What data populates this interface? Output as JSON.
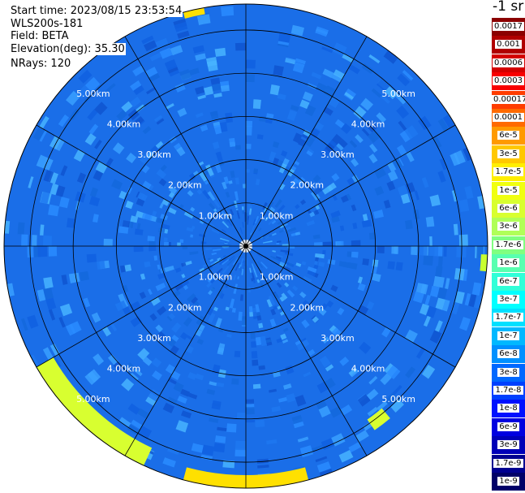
{
  "header": {
    "start_time": "Start time: 2023/08/15 23:53:54",
    "instrument": "WLS200s-181",
    "field": "Field: BETA",
    "elevation": "Elevation(deg): 35.30",
    "nrays": "NRays: 120"
  },
  "colorbar": {
    "unit": "-1 sr",
    "labels": [
      "0.0017",
      "0.001",
      "0.0006",
      "0.0003",
      "0.00017",
      "0.0001",
      "6e-5",
      "3e-5",
      "1.7e-5",
      "1e-5",
      "6e-6",
      "3e-6",
      "1.7e-6",
      "1e-6",
      "6e-7",
      "3e-7",
      "1.7e-7",
      "1e-7",
      "6e-8",
      "3e-8",
      "1.7e-8",
      "1e-8",
      "6e-9",
      "3e-9",
      "1.7e-9",
      "1e-9"
    ],
    "colors": [
      "#8b0000",
      "#b00000",
      "#d40000",
      "#f80000",
      "#ff3c00",
      "#ff6a00",
      "#ff9a00",
      "#ffc800",
      "#ffee00",
      "#f0ff10",
      "#d8ff30",
      "#b0ff58",
      "#80ff80",
      "#58ffb0",
      "#30ffd8",
      "#00ffff",
      "#00e0ff",
      "#00b8ff",
      "#0090ff",
      "#0068ff",
      "#0040ff",
      "#0010ff",
      "#0000e0",
      "#0000b8",
      "#000090",
      "#000068"
    ]
  },
  "chart_data": {
    "type": "heatmap",
    "projection": "polar-ppi",
    "variable": "BETA",
    "elevation_deg": 35.3,
    "n_rays": 120,
    "range_rings_km": [
      1,
      2,
      3,
      4,
      5
    ],
    "range_max_km": 5.6,
    "radial_lines_deg": [
      0,
      30,
      60,
      90,
      120,
      150,
      180,
      210,
      240,
      270,
      300,
      330
    ],
    "ring_labels": [
      "1.00km",
      "2.00km",
      "3.00km",
      "4.00km",
      "5.00km"
    ],
    "background_level": "1.7e-7",
    "background_color": "#1a6ee8",
    "enhanced_regions": [
      {
        "azimuth_from_deg": 205,
        "azimuth_to_deg": 240,
        "range_from_km": 5.15,
        "range_to_km": 5.6,
        "level": "3e-6",
        "color": "#d8ff30"
      },
      {
        "azimuth_from_deg": 165,
        "azimuth_to_deg": 195,
        "range_from_km": 5.3,
        "range_to_km": 5.6,
        "level": "1e-5",
        "color": "#ffe000"
      },
      {
        "azimuth_from_deg": 140,
        "azimuth_to_deg": 145,
        "range_from_km": 4.9,
        "range_to_km": 5.2,
        "level": "3e-6",
        "color": "#d8ff30"
      },
      {
        "azimuth_from_deg": 92,
        "azimuth_to_deg": 96,
        "range_from_km": 5.45,
        "range_to_km": 5.6,
        "level": "3e-6",
        "color": "#c8ff30"
      },
      {
        "azimuth_from_deg": 345,
        "azimuth_to_deg": 350,
        "range_from_km": 5.45,
        "range_to_km": 5.6,
        "level": "1e-5",
        "color": "#ffe000"
      }
    ]
  }
}
